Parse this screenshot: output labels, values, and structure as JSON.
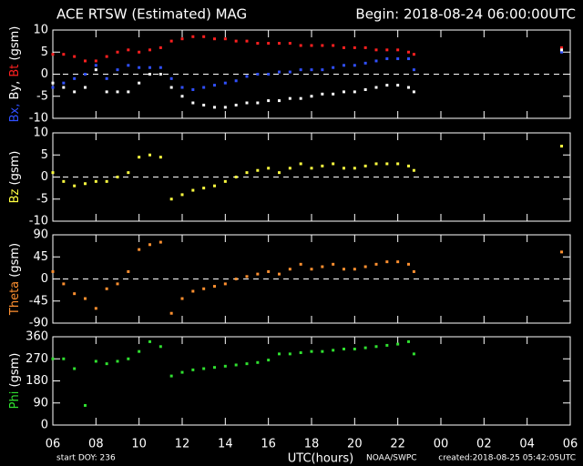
{
  "header": {
    "title": "ACE RTSW (Estimated) MAG",
    "begin": "Begin: 2018-08-24 06:00:00UTC"
  },
  "chart_data": [
    {
      "type": "scatter",
      "ylabel": [
        {
          "text": "Bx,",
          "color": "#3050ff"
        },
        {
          "text": "By,",
          "color": "#ffffff"
        },
        {
          "text": "Bt",
          "color": "#ff2020"
        },
        {
          "text": "(gsm)",
          "color": "#ffffff"
        }
      ],
      "x": [
        6,
        6.5,
        7,
        7.5,
        8,
        8.5,
        9,
        9.5,
        10,
        10.5,
        11,
        11.5,
        12,
        12.5,
        13,
        13.5,
        14,
        14.5,
        15,
        15.5,
        16,
        16.5,
        17,
        17.5,
        18,
        18.5,
        19,
        19.5,
        20,
        20.5,
        21,
        21.5,
        22,
        22.5,
        22.75,
        29.6
      ],
      "series": [
        {
          "color": "#ff2020",
          "values": [
            4.5,
            4.5,
            4,
            3,
            3,
            4,
            5,
            5.5,
            5,
            5.5,
            6,
            7.5,
            8,
            8.5,
            8.5,
            8,
            8,
            7.5,
            7.5,
            7,
            7,
            7,
            7,
            6.5,
            6.5,
            6.5,
            6.5,
            6,
            6,
            6,
            5.5,
            5.5,
            5.5,
            5,
            4.5,
            6
          ]
        },
        {
          "color": "#3050ff",
          "values": [
            -3,
            -2,
            -1,
            0,
            2,
            -1,
            1,
            2,
            1.5,
            1.5,
            1.5,
            -1,
            -3,
            -3.5,
            -3,
            -2.5,
            -2,
            -1.5,
            -0.5,
            0,
            0,
            0.5,
            0.5,
            1,
            1,
            1,
            1.5,
            2,
            2,
            2.5,
            3,
            3.5,
            3.5,
            3.5,
            1,
            5
          ]
        },
        {
          "color": "#ffffff",
          "values": [
            -2,
            -3,
            -4,
            -3,
            1,
            -4,
            -4,
            -4,
            -2,
            0,
            0,
            -3,
            -5,
            -6.5,
            -7,
            -7.5,
            -7.5,
            -7,
            -6.5,
            -6.5,
            -6,
            -6,
            -5.5,
            -5.5,
            -5,
            -4.5,
            -4.5,
            -4,
            -4,
            -3.5,
            -3,
            -2.5,
            -2.5,
            -3,
            -4,
            5.5
          ]
        }
      ],
      "ylim": [
        -10,
        10
      ],
      "yticks": [
        -10,
        -5,
        0,
        5,
        10
      ],
      "zero_line": true,
      "xlim": [
        6,
        30
      ]
    },
    {
      "type": "scatter",
      "ylabel": [
        {
          "text": "Bz",
          "color": "#ffff40"
        },
        {
          "text": "(gsm)",
          "color": "#ffffff"
        }
      ],
      "x": [
        6,
        6.5,
        7,
        7.5,
        8,
        8.5,
        9,
        9.5,
        10,
        10.5,
        11,
        11.5,
        12,
        12.5,
        13,
        13.5,
        14,
        14.5,
        15,
        15.5,
        16,
        16.5,
        17,
        17.5,
        18,
        18.5,
        19,
        19.5,
        20,
        20.5,
        21,
        21.5,
        22,
        22.5,
        22.75,
        29.6
      ],
      "series": [
        {
          "color": "#ffff40",
          "values": [
            1,
            -1,
            -2,
            -1.5,
            -1,
            -1,
            0,
            1,
            4.5,
            5,
            4.5,
            -5,
            -4,
            -3,
            -2.5,
            -2,
            -1,
            0,
            1,
            1.5,
            2,
            1,
            2,
            3,
            2,
            2.5,
            3,
            2,
            2,
            2.5,
            3,
            3,
            3,
            2.5,
            1.5,
            7
          ]
        }
      ],
      "ylim": [
        -10,
        10
      ],
      "yticks": [
        -10,
        -5,
        0,
        5,
        10
      ],
      "zero_line": true,
      "xlim": [
        6,
        30
      ]
    },
    {
      "type": "scatter",
      "ylabel": [
        {
          "text": "Theta",
          "color": "#ff9030"
        },
        {
          "text": "(gsm)",
          "color": "#ffffff"
        }
      ],
      "x": [
        6,
        6.5,
        7,
        7.5,
        8,
        8.5,
        9,
        9.5,
        10,
        10.5,
        11,
        11.5,
        12,
        12.5,
        13,
        13.5,
        14,
        14.5,
        15,
        15.5,
        16,
        16.5,
        17,
        17.5,
        18,
        18.5,
        19,
        19.5,
        20,
        20.5,
        21,
        21.5,
        22,
        22.5,
        22.75,
        29.6
      ],
      "series": [
        {
          "color": "#ff9030",
          "values": [
            15,
            -10,
            -30,
            -40,
            -60,
            -20,
            -10,
            15,
            60,
            70,
            75,
            -70,
            -40,
            -25,
            -20,
            -15,
            -10,
            0,
            5,
            10,
            15,
            10,
            20,
            30,
            20,
            25,
            30,
            20,
            20,
            25,
            30,
            35,
            35,
            30,
            15,
            55
          ]
        }
      ],
      "ylim": [
        -90,
        90
      ],
      "yticks": [
        -90,
        -45,
        0,
        45,
        90
      ],
      "zero_line": true,
      "xlim": [
        6,
        30
      ]
    },
    {
      "type": "scatter",
      "ylabel": [
        {
          "text": "Phi",
          "color": "#30e030"
        },
        {
          "text": "(gsm)",
          "color": "#ffffff"
        }
      ],
      "x": [
        6,
        6.5,
        7,
        7.5,
        8,
        8.5,
        9,
        9.5,
        10,
        10.5,
        11,
        11.5,
        12,
        12.5,
        13,
        13.5,
        14,
        14.5,
        15,
        15.5,
        16,
        16.5,
        17,
        17.5,
        18,
        18.5,
        19,
        19.5,
        20,
        20.5,
        21,
        21.5,
        22,
        22.5,
        22.75
      ],
      "series": [
        {
          "color": "#30e030",
          "values": [
            270,
            270,
            230,
            80,
            260,
            250,
            260,
            270,
            300,
            340,
            320,
            200,
            215,
            225,
            230,
            235,
            240,
            245,
            250,
            255,
            265,
            290,
            290,
            295,
            300,
            300,
            305,
            310,
            310,
            315,
            320,
            325,
            330,
            340,
            290
          ]
        }
      ],
      "ylim": [
        0,
        360
      ],
      "yticks": [
        0,
        90,
        180,
        270,
        360
      ],
      "zero_line": false,
      "xlim": [
        6,
        30
      ],
      "xticks": [
        {
          "value": 6,
          "label": "06"
        },
        {
          "value": 8,
          "label": "08"
        },
        10,
        12,
        14,
        16,
        18,
        20,
        22,
        {
          "value": 24,
          "label": "00"
        },
        {
          "value": 26,
          "label": "02"
        },
        {
          "value": 28,
          "label": "04"
        },
        {
          "value": 30,
          "label": "06"
        }
      ],
      "xlabel": "UTC(hours)"
    }
  ],
  "footer": {
    "start_doy": "start DOY: 236",
    "source": "NOAA/SWPC",
    "created": "created:2018-08-25 05:42:05UTC"
  }
}
